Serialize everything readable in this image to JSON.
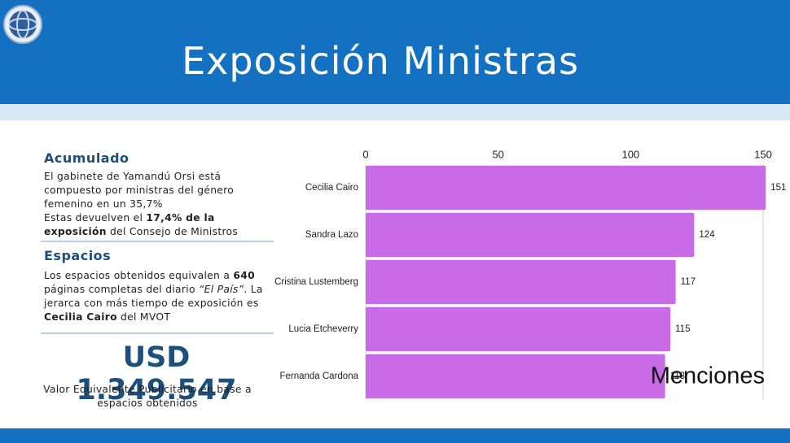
{
  "header": {
    "title": "Exposición Ministras"
  },
  "acumulado": {
    "title": "Acumulado",
    "parts": [
      {
        "text": "El gabinete de Yamandú Orsi está compuesto por ministras del género femenino en un 35,7%"
      },
      {
        "text": "Estas devuelven el ",
        "newline": true
      },
      {
        "text": "17,4% de la exposición",
        "bold": true
      },
      {
        "text": " del Consejo de Ministros"
      }
    ]
  },
  "espacios": {
    "title": "Espacios",
    "parts": [
      {
        "text": "Los espacios obtenidos equivalen a "
      },
      {
        "text": "640",
        "bold": true
      },
      {
        "text": " páginas completas del diario "
      },
      {
        "text": "“El País”",
        "italic": true
      },
      {
        "text": ". La jerarca con más tiempo de exposición es "
      },
      {
        "text": "Cecilia Cairo",
        "bold": true
      },
      {
        "text": " del MVOT"
      }
    ]
  },
  "highlight": {
    "amount": "USD 1.349.547",
    "caption": "Valor Equivalente Publicitario en base a espacios obtenidos"
  },
  "chart_data": {
    "type": "barh",
    "categories": [
      "Cecilia Cairo",
      "Sandra Lazo",
      "Cristina Lustemberg",
      "Lucia Etcheverry",
      "Fernanda Cardona"
    ],
    "values": [
      151,
      124,
      117,
      115,
      113
    ],
    "color": "#c96ae6",
    "xlim": [
      0,
      151
    ],
    "xticks": [
      0,
      50,
      100,
      150
    ],
    "x_label": "Menciones",
    "grid": false
  }
}
